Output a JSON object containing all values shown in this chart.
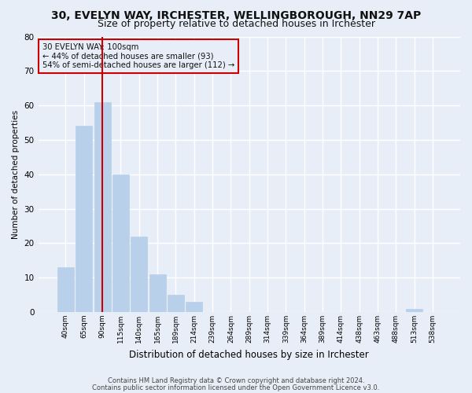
{
  "title1": "30, EVELYN WAY, IRCHESTER, WELLINGBOROUGH, NN29 7AP",
  "title2": "Size of property relative to detached houses in Irchester",
  "xlabel": "Distribution of detached houses by size in Irchester",
  "ylabel": "Number of detached properties",
  "footnote1": "Contains HM Land Registry data © Crown copyright and database right 2024.",
  "footnote2": "Contains public sector information licensed under the Open Government Licence v3.0.",
  "annotation_line1": "30 EVELYN WAY: 100sqm",
  "annotation_line2": "← 44% of detached houses are smaller (93)",
  "annotation_line3": "54% of semi-detached houses are larger (112) →",
  "bar_labels": [
    "40sqm",
    "65sqm",
    "90sqm",
    "115sqm",
    "140sqm",
    "165sqm",
    "189sqm",
    "214sqm",
    "239sqm",
    "264sqm",
    "289sqm",
    "314sqm",
    "339sqm",
    "364sqm",
    "389sqm",
    "414sqm",
    "438sqm",
    "463sqm",
    "488sqm",
    "513sqm",
    "538sqm"
  ],
  "bar_values": [
    13,
    54,
    61,
    40,
    22,
    11,
    5,
    3,
    0,
    0,
    0,
    0,
    0,
    0,
    0,
    0,
    0,
    0,
    0,
    1,
    0
  ],
  "bar_color": "#b8d0ea",
  "bar_edge_color": "#b8d0ea",
  "ylim": [
    0,
    80
  ],
  "yticks": [
    0,
    10,
    20,
    30,
    40,
    50,
    60,
    70,
    80
  ],
  "bg_color": "#e8eef8",
  "plot_bg_color": "#e8eef8",
  "grid_color": "#ffffff",
  "annotation_box_color": "#cc0000",
  "red_line_bar_index": 2,
  "title1_fontsize": 10,
  "title2_fontsize": 9
}
